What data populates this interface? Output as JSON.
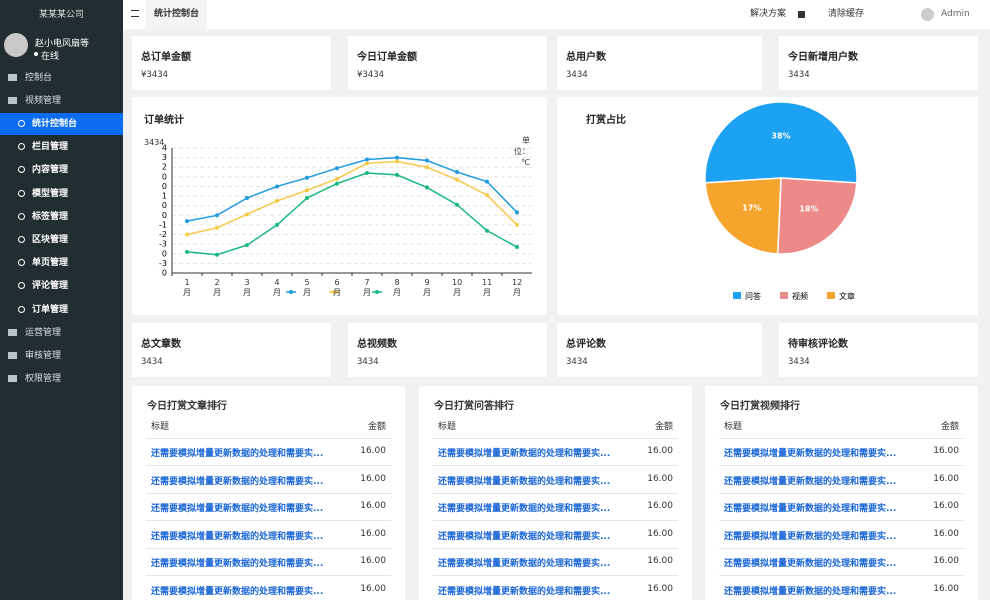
{
  "sidebar": {
    "company": "某某某公司",
    "user": {
      "name": "赵小电风扇等",
      "status": "在线"
    },
    "menu": [
      {
        "label": "控制台"
      },
      {
        "label": "视频管理",
        "children": [
          "统计控制台",
          "栏目管理",
          "内容管理",
          "模型管理",
          "标签管理",
          "区块管理",
          "单页管理",
          "评论管理",
          "订单管理"
        ]
      },
      {
        "label": "运营管理"
      },
      {
        "label": "审核管理"
      },
      {
        "label": "权限管理"
      }
    ]
  },
  "topbar": {
    "tab": "统计控制台",
    "links": [
      "解决方案",
      "清除缓存"
    ],
    "user": "Admin"
  },
  "stats_top": [
    {
      "title": "总订单金额",
      "value": "¥3434"
    },
    {
      "title": "今日订单金额",
      "value": "¥3434"
    },
    {
      "title": "总用户数",
      "value": "3434"
    },
    {
      "title": "今日新增用户数",
      "value": "3434"
    }
  ],
  "stats_bottom": [
    {
      "title": "总文章数",
      "value": "3434"
    },
    {
      "title": "总视频数",
      "value": "3434"
    },
    {
      "title": "总评论数",
      "value": "3434"
    },
    {
      "title": "待审核评论数",
      "value": "3434"
    }
  ],
  "chart_data": [
    {
      "type": "line",
      "title": "订单统计",
      "y_axis_name": "3434",
      "unit": "单位：℃",
      "categories": [
        "1月",
        "2月",
        "3月",
        "4月",
        "5月",
        "6月",
        "7月",
        "8月",
        "9月",
        "10月",
        "11月",
        "12月"
      ],
      "ylim": [
        0,
        13
      ],
      "yticks": [
        0,
        {
          "value": 1,
          "label": "-3"
        },
        {
          "value": 2,
          "label": "0"
        },
        {
          "value": 3,
          "label": "-3"
        },
        {
          "value": 4,
          "label": "-2"
        },
        {
          "value": 5,
          "label": "-1"
        },
        {
          "value": 6,
          "label": "0"
        },
        {
          "value": 7,
          "label": "0"
        },
        {
          "value": 8,
          "label": "1"
        },
        {
          "value": 9,
          "label": "0"
        },
        {
          "value": 10,
          "label": "0"
        },
        {
          "value": 11,
          "label": "2"
        },
        {
          "value": 12,
          "label": "3"
        },
        {
          "value": 13,
          "label": "4"
        }
      ],
      "grid": true,
      "series": [
        {
          "color": "#1e9be0",
          "values": [
            5.4,
            6.0,
            7.8,
            9.0,
            9.9,
            10.9,
            11.8,
            12.0,
            11.7,
            10.5,
            9.5,
            6.3
          ]
        },
        {
          "color": "#f7c948",
          "values": [
            4.0,
            4.7,
            6.1,
            7.5,
            8.6,
            9.8,
            11.4,
            11.6,
            11.0,
            9.7,
            8.1,
            5.0
          ]
        },
        {
          "color": "#18b97c",
          "values": [
            2.2,
            1.9,
            2.9,
            5.0,
            7.8,
            9.3,
            10.4,
            10.2,
            8.9,
            7.1,
            4.4,
            2.7
          ]
        }
      ]
    },
    {
      "type": "pie",
      "title": "打赏占比",
      "categories": [
        "问答",
        "视频",
        "文章"
      ],
      "values": [
        38,
        18,
        17
      ],
      "value_labels": [
        "38%",
        "18%",
        "17%"
      ],
      "colors": [
        "#1da1f2",
        "#ec8a8a",
        "#f5a52e"
      ]
    }
  ],
  "rankings": [
    {
      "title": "今日打赏文章排行",
      "columns": [
        "标题",
        "金额"
      ],
      "rows": [
        [
          "还需要模拟增量更新数据的处理和需要实...",
          "16.00"
        ],
        [
          "还需要模拟增量更新数据的处理和需要实...",
          "16.00"
        ],
        [
          "还需要模拟增量更新数据的处理和需要实...",
          "16.00"
        ],
        [
          "还需要模拟增量更新数据的处理和需要实...",
          "16.00"
        ],
        [
          "还需要模拟增量更新数据的处理和需要实...",
          "16.00"
        ],
        [
          "还需要模拟增量更新数据的处理和需要实...",
          "16.00"
        ]
      ]
    },
    {
      "title": "今日打赏问答排行",
      "columns": [
        "标题",
        "金额"
      ],
      "rows": [
        [
          "还需要模拟增量更新数据的处理和需要实...",
          "16.00"
        ],
        [
          "还需要模拟增量更新数据的处理和需要实...",
          "16.00"
        ],
        [
          "还需要模拟增量更新数据的处理和需要实...",
          "16.00"
        ],
        [
          "还需要模拟增量更新数据的处理和需要实...",
          "16.00"
        ],
        [
          "还需要模拟增量更新数据的处理和需要实...",
          "16.00"
        ],
        [
          "还需要模拟增量更新数据的处理和需要实...",
          "16.00"
        ]
      ]
    },
    {
      "title": "今日打赏视频排行",
      "columns": [
        "标题",
        "金额"
      ],
      "rows": [
        [
          "还需要模拟增量更新数据的处理和需要实...",
          "16.00"
        ],
        [
          "还需要模拟增量更新数据的处理和需要实...",
          "16.00"
        ],
        [
          "还需要模拟增量更新数据的处理和需要实...",
          "16.00"
        ],
        [
          "还需要模拟增量更新数据的处理和需要实...",
          "16.00"
        ],
        [
          "还需要模拟增量更新数据的处理和需要实...",
          "16.00"
        ],
        [
          "还需要模拟增量更新数据的处理和需要实...",
          "16.00"
        ]
      ]
    }
  ]
}
